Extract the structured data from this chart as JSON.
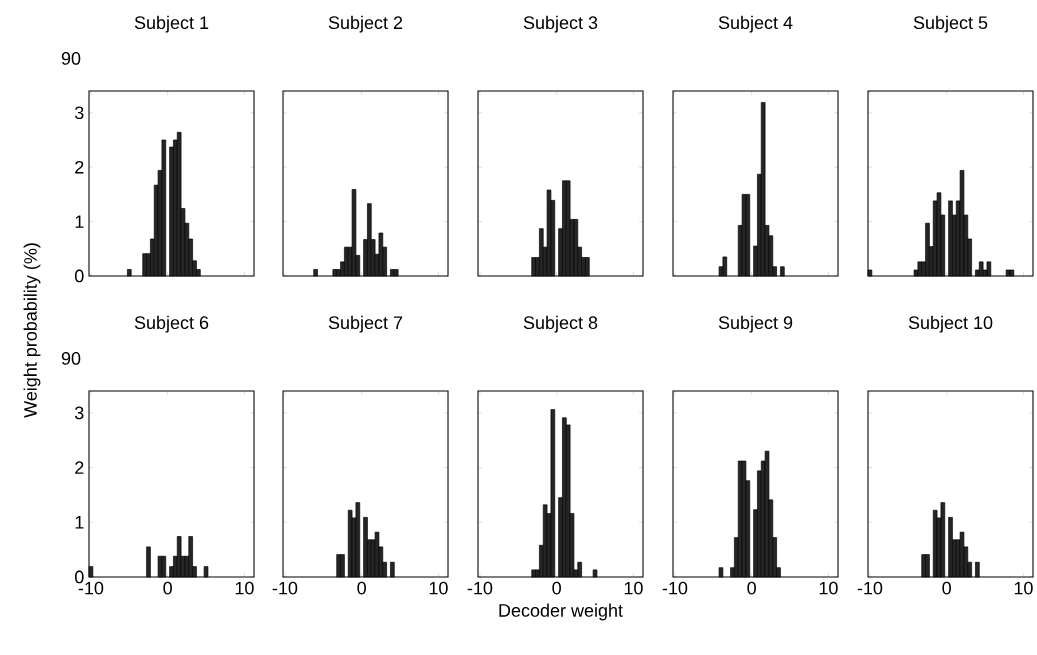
{
  "chart_data": [
    {
      "type": "other",
      "title": "Subject 1",
      "annotations": [
        "90"
      ]
    },
    {
      "type": "histogram",
      "ylabel": "Weight probability (%)",
      "bins": [
        -5.25,
        -4.75,
        -4.25,
        -3.75,
        -3.25,
        -2.75,
        -2.25,
        -1.75,
        -1.25,
        -0.75,
        -0.25,
        0.25,
        0.75,
        1.25,
        1.75,
        2.25,
        2.75,
        3.25,
        3.75,
        4.25
      ],
      "values": [
        0.12,
        0,
        0,
        0,
        0.41,
        0.41,
        0.68,
        1.67,
        1.94,
        2.5,
        null,
        2.37,
        2.5,
        2.64,
        1.24,
        0.97,
        0.68,
        0.28,
        0.12
      ],
      "color": "#262626",
      "xlim": [
        -10.25,
        11.25
      ],
      "ylim": [
        0,
        3.4
      ],
      "xticks": [
        -10,
        0,
        10
      ],
      "yticks": [
        0,
        1,
        2,
        3
      ],
      "tick_labels": "y"
    },
    {
      "type": "other",
      "title": "Subject 2"
    },
    {
      "type": "histogram",
      "bins": [
        -6.25,
        -5.75,
        -5.25,
        -4.75,
        -4.25,
        -3.75,
        -3.25,
        -2.75,
        -2.25,
        -1.75,
        -1.25,
        -0.75,
        -0.25,
        0.25,
        0.75,
        1.25,
        1.75,
        2.25,
        2.75,
        3.25,
        3.75,
        4.25,
        4.75
      ],
      "values": [
        0.12,
        0,
        0,
        0,
        0,
        0.12,
        0.12,
        0.26,
        0.53,
        0.53,
        1.59,
        0.38,
        null,
        0.67,
        1.33,
        0.67,
        0.4,
        0.79,
        0.53,
        0,
        0.12,
        0.12
      ],
      "color": "#262626",
      "xlim": [
        -10.25,
        11.25
      ],
      "ylim": [
        0,
        3.4
      ],
      "xticks": [
        -10,
        0,
        10
      ],
      "yticks": [
        0,
        1,
        2,
        3
      ],
      "tick_labels": false
    },
    {
      "type": "other",
      "title": "Subject 3"
    },
    {
      "type": "histogram",
      "bins": [
        -3.25,
        -2.75,
        -2.25,
        -1.75,
        -1.25,
        -0.75,
        -0.25,
        0.25,
        0.75,
        1.25,
        1.75,
        2.25,
        2.75,
        3.25,
        3.75,
        4.25
      ],
      "values": [
        0.34,
        0.34,
        0.87,
        0.53,
        1.58,
        1.39,
        null,
        0.87,
        1.75,
        1.75,
        1.04,
        1.04,
        0.53,
        0.34,
        0.34
      ],
      "color": "#262626",
      "xlim": [
        -10.25,
        11.25
      ],
      "ylim": [
        0,
        3.4
      ],
      "xticks": [
        -10,
        0,
        10
      ],
      "yticks": [
        0,
        1,
        2,
        3
      ],
      "tick_labels": false
    },
    {
      "type": "other",
      "title": "Subject 4"
    },
    {
      "type": "histogram",
      "bins": [
        -4.25,
        -3.75,
        -3.25,
        -2.75,
        -2.25,
        -1.75,
        -1.25,
        -0.75,
        -0.25,
        0.25,
        0.75,
        1.25,
        1.75,
        2.25,
        2.75,
        3.25,
        3.75,
        4.25
      ],
      "values": [
        0.17,
        0.35,
        0,
        0,
        0,
        0.93,
        1.5,
        1.5,
        null,
        0.55,
        1.87,
        3.19,
        0.93,
        0.74,
        0.17,
        0,
        0.17
      ],
      "color": "#262626",
      "xlim": [
        -10.25,
        11.25
      ],
      "ylim": [
        0,
        3.4
      ],
      "xticks": [
        -10,
        0,
        10
      ],
      "yticks": [
        0,
        1,
        2,
        3
      ],
      "tick_labels": false
    },
    {
      "type": "other",
      "title": "Subject 5"
    },
    {
      "type": "histogram",
      "bins": [
        -10.25,
        -9.75,
        -9.25,
        -8.75,
        -8.25,
        -7.75,
        -7.25,
        -6.75,
        -6.25,
        -5.75,
        -5.25,
        -4.75,
        -4.25,
        -3.75,
        -3.25,
        -2.75,
        -2.25,
        -1.75,
        -1.25,
        -0.75,
        -0.25,
        0.25,
        0.75,
        1.25,
        1.75,
        2.25,
        2.75,
        3.25,
        3.75,
        4.25,
        4.75,
        5.25,
        5.75,
        6.25,
        6.75,
        7.25,
        7.75,
        8.25,
        8.75
      ],
      "values": [
        0.11,
        0,
        0,
        0,
        0,
        0,
        0,
        0,
        0,
        0,
        0,
        0,
        0.11,
        0.26,
        0.26,
        0.97,
        0.54,
        1.38,
        1.53,
        1.12,
        null,
        1.38,
        1.12,
        1.38,
        1.94,
        1.12,
        0.68,
        0,
        0.11,
        0.26,
        0.11,
        0.26,
        0,
        0,
        0,
        0,
        0.11,
        0.11
      ],
      "color": "#262626",
      "xlim": [
        -10.25,
        11.25
      ],
      "ylim": [
        0,
        3.4
      ],
      "xticks": [
        -10,
        0,
        10
      ],
      "yticks": [
        0,
        1,
        2,
        3
      ],
      "tick_labels": false
    },
    {
      "type": "other",
      "title": "Subject 6",
      "annotations": [
        "90"
      ]
    },
    {
      "type": "histogram",
      "bins": [
        -10.25,
        -9.75,
        -9.25,
        -8.75,
        -8.25,
        -7.75,
        -7.25,
        -6.75,
        -6.25,
        -5.75,
        -5.25,
        -4.75,
        -4.25,
        -3.75,
        -3.25,
        -2.75,
        -2.25,
        -1.75,
        -1.25,
        -0.75,
        -0.25,
        0.25,
        0.75,
        1.25,
        1.75,
        2.25,
        2.75,
        3.25,
        3.75,
        4.25,
        4.75,
        5.25
      ],
      "values": [
        0.19,
        0,
        0,
        0,
        0,
        0,
        0,
        0,
        0,
        0,
        0,
        0,
        0,
        0,
        0,
        0.55,
        0,
        0,
        0.38,
        0.38,
        null,
        0.19,
        0.38,
        0.74,
        0.38,
        0.38,
        0.74,
        0.19,
        0,
        0,
        0.19
      ],
      "color": "#262626",
      "xlim": [
        -10.25,
        11.25
      ],
      "ylim": [
        0,
        3.4
      ],
      "xticks": [
        -10,
        0,
        10
      ],
      "yticks": [
        0,
        1,
        2,
        3
      ]
    },
    {
      "type": "other",
      "title": "Subject 7"
    },
    {
      "type": "histogram",
      "bins": [
        -3.25,
        -2.75,
        -2.25,
        -1.75,
        -1.25,
        -0.75,
        -0.25,
        0.25,
        0.75,
        1.25,
        1.75,
        2.25,
        2.75,
        3.25,
        3.75,
        4.25
      ],
      "values": [
        0.41,
        0.41,
        0,
        1.22,
        1.08,
        1.36,
        null,
        1.09,
        0.68,
        0.68,
        0.82,
        0.55,
        0.27,
        0,
        0.27
      ],
      "color": "#262626",
      "xlim": [
        -10.25,
        11.25
      ],
      "ylim": [
        0,
        3.4
      ],
      "xticks": [
        -10,
        0,
        10
      ],
      "yticks": [
        0,
        1,
        2,
        3
      ],
      "tick_labels": "x"
    },
    {
      "type": "other",
      "title": "Subject 8"
    },
    {
      "type": "histogram",
      "xlabel": "Decoder weight",
      "bins": [
        -3.25,
        -2.75,
        -2.25,
        -1.75,
        -1.25,
        -0.75,
        -0.25,
        0.25,
        0.75,
        1.25,
        1.75,
        2.25,
        2.75,
        3.25,
        3.75,
        4.25,
        4.75,
        5.25
      ],
      "values": [
        0.13,
        0.13,
        0.58,
        1.32,
        1.16,
        3.06,
        null,
        1.45,
        2.91,
        2.78,
        1.16,
        0.13,
        0.27,
        0,
        0,
        0,
        0.13
      ],
      "color": "#262626",
      "xlim": [
        -10.25,
        11.25
      ],
      "ylim": [
        0,
        3.4
      ],
      "xticks": [
        -10,
        0,
        10
      ],
      "yticks": [
        0,
        1,
        2,
        3
      ],
      "tick_labels": "x"
    },
    {
      "type": "other",
      "title": "Subject 9"
    },
    {
      "type": "histogram",
      "bins": [
        -4.25,
        -3.75,
        -3.25,
        -2.75,
        -2.25,
        -1.75,
        -1.25,
        -0.75,
        -0.25,
        0.25,
        0.75,
        1.25,
        1.75,
        2.25,
        2.75,
        3.25,
        3.75
      ],
      "values": [
        0.17,
        0,
        0,
        0.17,
        0.72,
        2.12,
        2.12,
        1.76,
        null,
        1.23,
        1.94,
        2.12,
        2.3,
        1.41,
        0.72,
        0.17
      ],
      "color": "#262626",
      "xlim": [
        -10.25,
        11.25
      ],
      "ylim": [
        0,
        3.4
      ],
      "xticks": [
        -10,
        0,
        10
      ],
      "yticks": [
        0,
        1,
        2,
        3
      ],
      "tick_labels": "x"
    },
    {
      "type": "other",
      "title": "Subject 10"
    },
    {
      "type": "histogram",
      "bins": [
        -3.25,
        -2.75,
        -2.25,
        -1.75,
        -1.25,
        -0.75,
        -0.25,
        0.25,
        0.75,
        1.25,
        1.75,
        2.25,
        2.75,
        3.25,
        3.75,
        4.25
      ],
      "values": [
        0.41,
        0.41,
        0,
        1.22,
        1.08,
        1.36,
        null,
        1.09,
        0.68,
        0.68,
        0.82,
        0.55,
        0.27,
        0,
        0.27
      ],
      "color": "#262626",
      "xlim": [
        -10.25,
        11.25
      ],
      "ylim": [
        0,
        3.4
      ],
      "xticks": [
        -10,
        0,
        10
      ],
      "yticks": [
        0,
        1,
        2,
        3
      ],
      "tick_labels": "x"
    }
  ]
}
